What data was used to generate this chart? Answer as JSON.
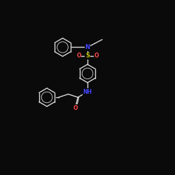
{
  "background_color": "#0a0a0a",
  "bond_color": "#d8d8d8",
  "N_color": "#4444ff",
  "O_color": "#ff4444",
  "S_color": "#cccc00",
  "NH_color": "#4444ff",
  "figsize": [
    2.5,
    2.5
  ],
  "dpi": 100,
  "lw": 1.0,
  "ring_r": 0.52,
  "xlim": [
    0,
    10
  ],
  "ylim": [
    0,
    10
  ]
}
